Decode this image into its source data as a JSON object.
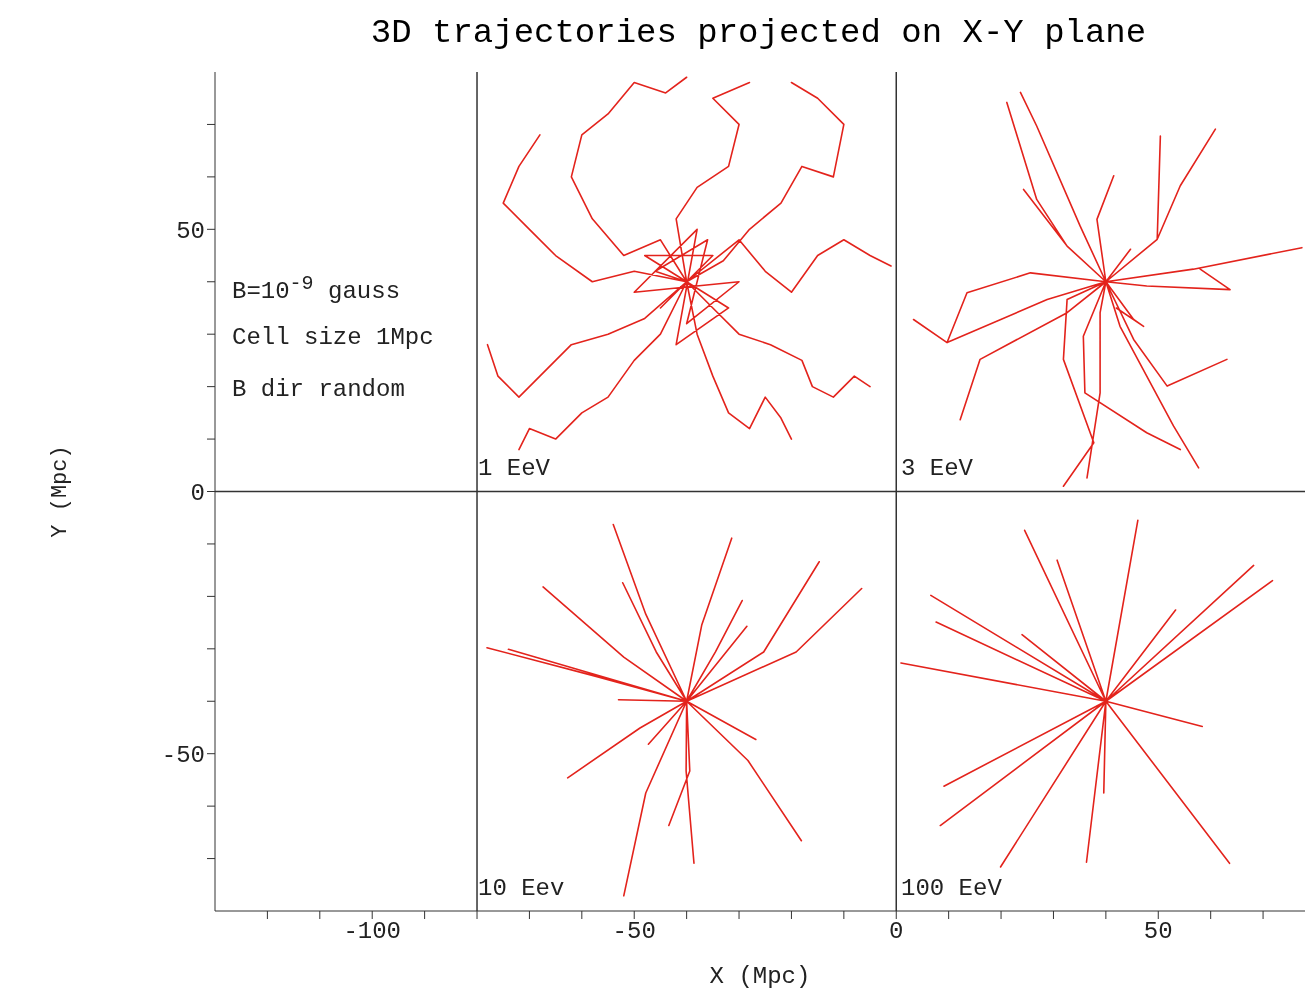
{
  "chart_data": {
    "type": "line",
    "title": "3D trajectories projected on X-Y plane",
    "xlabel": "X (Mpc)",
    "ylabel": "Y (Mpc)",
    "xlim": [
      -130,
      78
    ],
    "ylim": [
      -80,
      80
    ],
    "xticks": [
      {
        "value": -120,
        "label": null
      },
      {
        "value": -110,
        "label": null
      },
      -100,
      {
        "value": -90,
        "label": null
      },
      {
        "value": -80,
        "label": null
      },
      {
        "value": -70,
        "label": null
      },
      {
        "value": -60,
        "label": null
      },
      -50,
      {
        "value": -40,
        "label": null
      },
      {
        "value": -30,
        "label": null
      },
      {
        "value": -20,
        "label": null
      },
      {
        "value": -10,
        "label": null
      },
      0,
      {
        "value": 10,
        "label": null
      },
      {
        "value": 20,
        "label": null
      },
      {
        "value": 30,
        "label": null
      },
      {
        "value": 40,
        "label": null
      },
      50,
      {
        "value": 60,
        "label": null
      },
      {
        "value": 70,
        "label": null
      }
    ],
    "yticks": [
      {
        "value": -70,
        "label": null
      },
      {
        "value": -60,
        "label": null
      },
      -50,
      {
        "value": -40,
        "label": null
      },
      {
        "value": -30,
        "label": null
      },
      {
        "value": -20,
        "label": null
      },
      {
        "value": -10,
        "label": null
      },
      0,
      {
        "value": 10,
        "label": null
      },
      {
        "value": 20,
        "label": null
      },
      {
        "value": 30,
        "label": null
      },
      {
        "value": 40,
        "label": null
      },
      50,
      {
        "value": 60,
        "label": null
      },
      {
        "value": 70,
        "label": null
      }
    ],
    "grid": false,
    "marker": "none",
    "line_style": "solid",
    "ref_lines": [
      {
        "axis": "x",
        "value": -80,
        "color": "#333333"
      },
      {
        "axis": "x",
        "value": 0,
        "color": "#333333"
      },
      {
        "axis": "y",
        "value": 0,
        "color": "#333333"
      }
    ],
    "annotations": [
      "B=10$^{-9}$ gauss",
      "Cell size 1Mpc",
      "B dir random",
      "1 EeV",
      "3 EeV",
      "10 Eev",
      "100 EeV"
    ],
    "series": [
      {
        "color": "#e3231c",
        "x": [
          -40,
          -45,
          -52,
          -58,
          -62,
          -60,
          -55,
          -50,
          -44,
          -40,
          null,
          -40,
          -33,
          -28,
          -22,
          -18,
          -12,
          -10,
          -15,
          -20,
          null,
          -40,
          -35,
          -30,
          -24,
          -18,
          -16,
          -12,
          -8,
          -5,
          null,
          -40,
          -48,
          -55,
          -62,
          -68,
          -72,
          -76,
          -78,
          null,
          -40,
          -45,
          -50,
          -55,
          -60,
          -65,
          -70,
          -72,
          null,
          -40,
          -38,
          -35,
          -32,
          -28,
          -25,
          -22,
          -20,
          null,
          -40,
          -50,
          -58,
          -65,
          -70,
          -75,
          -72,
          -68,
          null,
          -40,
          -30,
          -25,
          -20,
          -15,
          -10,
          -5,
          -1,
          null,
          -40,
          -42,
          -38,
          -32,
          -30,
          -35,
          -28,
          null,
          -45,
          -35,
          -48,
          -32,
          -42,
          -38,
          -50,
          -30,
          -40,
          -36,
          -46,
          -40
        ],
        "values": [
          40,
          48,
          45,
          52,
          60,
          68,
          72,
          78,
          76,
          79,
          null,
          40,
          44,
          50,
          55,
          62,
          60,
          70,
          75,
          78,
          null,
          40,
          35,
          30,
          28,
          25,
          20,
          18,
          22,
          20,
          null,
          40,
          33,
          30,
          28,
          22,
          18,
          22,
          28,
          null,
          40,
          30,
          25,
          18,
          15,
          10,
          12,
          8,
          null,
          40,
          30,
          22,
          15,
          12,
          18,
          14,
          10,
          null,
          40,
          42,
          40,
          45,
          50,
          55,
          62,
          68,
          null,
          40,
          48,
          42,
          38,
          45,
          48,
          45,
          43,
          null,
          40,
          52,
          58,
          62,
          70,
          75,
          78,
          null,
          35,
          45,
          45,
          35,
          28,
          50,
          38,
          40,
          32,
          48,
          42,
          40
        ]
      },
      {
        "color": "#e3231c",
        "x": [
          40,
          32.6,
          26.8,
          21.1,
          null,
          40,
          35.1,
          26.8,
          23.7,
          null,
          40,
          32.6,
          24.3,
          null,
          40,
          38.3,
          41.5,
          null,
          40,
          49.8,
          50.4,
          null,
          40,
          49.8,
          54.2,
          60.9,
          null,
          40,
          44.7,
          null,
          40,
          56.7,
          77.4,
          null,
          40,
          47.8,
          63.7,
          58,
          null,
          40,
          45.3,
          47.2,
          42,
          null,
          40,
          45.3,
          51.7,
          63.1,
          null,
          40,
          42.7,
          52.9,
          57.7,
          null,
          40,
          38.9,
          38.9,
          36.4,
          null,
          40,
          35.7,
          36,
          47.8,
          54.2,
          null,
          40,
          32.6,
          31.9,
          37.7,
          31.9,
          null,
          40,
          28.8,
          9.7,
          3.3,
          null,
          40,
          25.6,
          13.5,
          9.7,
          null,
          40,
          32.6,
          16,
          12.2
        ],
        "values": [
          40,
          46.8,
          55.7,
          74.2,
          null,
          40,
          50.6,
          69.7,
          76.1,
          null,
          40,
          46.8,
          57.6,
          null,
          40,
          51.9,
          60.2,
          null,
          40,
          48.1,
          67.8,
          null,
          40,
          48.1,
          58.3,
          69.1,
          null,
          40,
          46.2,
          null,
          40,
          42.4,
          46.5,
          null,
          40,
          39.2,
          38.5,
          42.4,
          null,
          40,
          32.8,
          31.5,
          35,
          null,
          40,
          29,
          20.1,
          25.2,
          null,
          40,
          31.5,
          12.5,
          4.5,
          null,
          40,
          34.1,
          18.8,
          2.6,
          null,
          40,
          29.6,
          18.8,
          11.2,
          8,
          null,
          40,
          36.6,
          25.2,
          9.3,
          1,
          null,
          40,
          36.6,
          28.4,
          32.8,
          null,
          40,
          41.7,
          37.9,
          28.4,
          null,
          40,
          34.1,
          25.2,
          13.7
        ]
      },
      {
        "color": "#e3231c",
        "x": [
          -40,
          -47.8,
          -54,
          null,
          -40,
          -37.1,
          -31.4,
          null,
          -40,
          -45.8,
          -52.2,
          null,
          -40,
          -34.5,
          -29.4,
          null,
          -40,
          -28.5,
          null,
          -40,
          -25.3,
          -14.7,
          null,
          -40,
          -19.1,
          -6.6,
          null,
          -40,
          -52,
          -67.4,
          null,
          -40,
          -57.1,
          -78.1,
          null,
          -40,
          -74,
          null,
          -40,
          -53,
          null,
          -40,
          -48.9,
          -62.7,
          null,
          -40,
          -47.8,
          -52,
          null,
          -40,
          -39.4,
          -43.4,
          null,
          -40,
          -40.1,
          -38.6,
          null,
          -40,
          -26.8,
          null,
          -40,
          -28.3,
          -18.1,
          null,
          -40,
          -47.3
        ],
        "values": [
          -40,
          -23.4,
          -6.3,
          null,
          -40,
          -25.4,
          -8.9,
          null,
          -40,
          -30.6,
          -17.4,
          null,
          -40,
          -30.6,
          -20.8,
          null,
          -40,
          -25.7,
          null,
          -40,
          -30.6,
          -13.4,
          null,
          -40,
          -30.6,
          -18.5,
          null,
          -40,
          -31.6,
          -18.2,
          null,
          -40,
          -35.3,
          -29.8,
          null,
          -40,
          -30.1,
          null,
          -40,
          -39.7,
          null,
          -40,
          -45.1,
          -54.6,
          null,
          -40,
          -57.5,
          -77.1,
          null,
          -40,
          -53.3,
          -63.7,
          null,
          -40,
          -53.3,
          -70.9,
          null,
          -40,
          -47.3,
          null,
          -40,
          -51.3,
          -66.6,
          null,
          -40,
          -48.2
        ]
      },
      {
        "color": "#e3231c",
        "x": [
          40,
          24.5,
          null,
          40,
          30.7,
          null,
          40,
          46.1,
          null,
          40,
          68.2,
          null,
          40,
          71.8,
          null,
          40,
          53.3,
          null,
          40,
          6.6,
          null,
          40,
          7.6,
          null,
          40,
          24,
          null,
          40,
          0.9,
          null,
          40,
          58.4,
          null,
          40,
          9.1,
          null,
          40,
          8.4,
          null,
          40,
          19.9,
          null,
          40,
          36.3,
          null,
          40,
          39.6,
          null,
          40,
          63.6
        ],
        "values": [
          -40,
          -7.4,
          null,
          -40,
          -13.1,
          null,
          -40,
          -5.5,
          null,
          -40,
          -14.1,
          null,
          -40,
          -17,
          null,
          -40,
          -22.6,
          null,
          -40,
          -19.8,
          null,
          -40,
          -24.9,
          null,
          -40,
          -27.3,
          null,
          -40,
          -32.7,
          null,
          -40,
          -44.8,
          null,
          -40,
          -56.2,
          null,
          -40,
          -63.7,
          null,
          -40,
          -71.6,
          null,
          -40,
          -70.7,
          null,
          -40,
          -57.5,
          null,
          -40,
          -70.9
        ]
      }
    ]
  }
}
